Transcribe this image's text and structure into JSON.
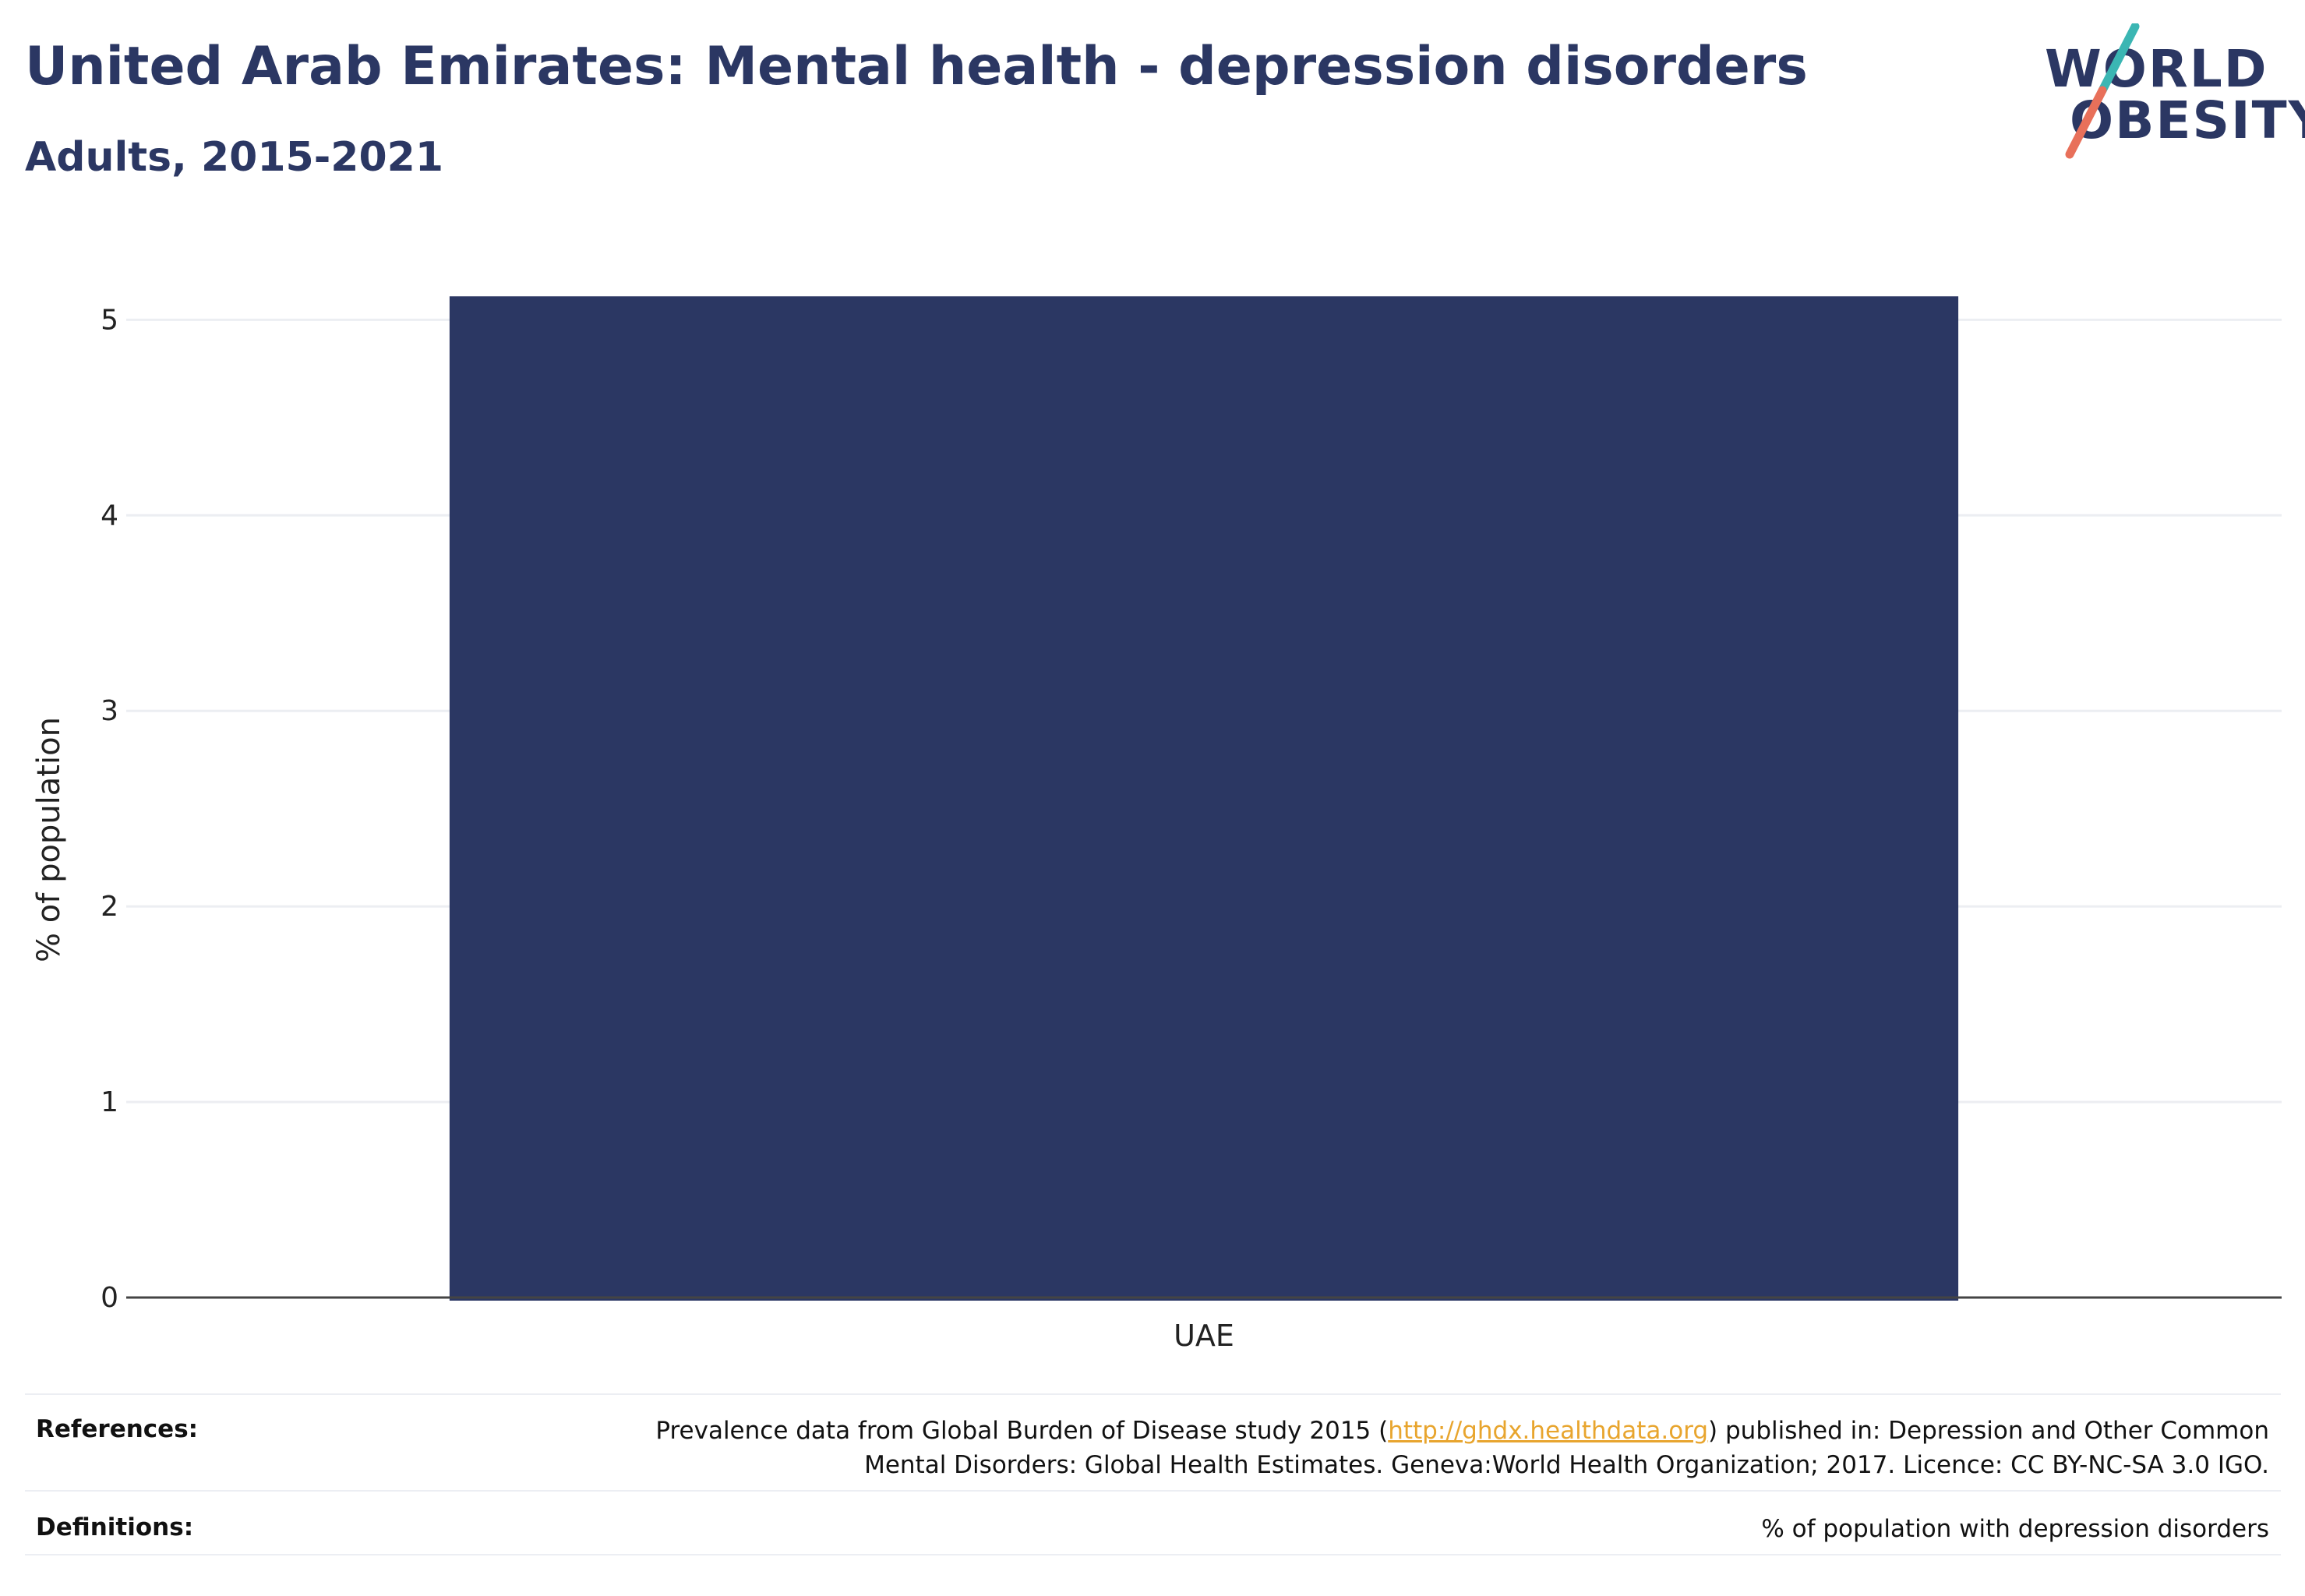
{
  "header": {
    "title": "United Arab Emirates: Mental health - depression disorders",
    "subtitle": "Adults, 2015-2021"
  },
  "logo": {
    "line1": "WORLD",
    "line2": "OBESITY",
    "colors": {
      "text": "#2b3763",
      "slash_top": "#3bb6b3",
      "slash_bottom": "#e8705a"
    }
  },
  "chart_data": {
    "type": "bar",
    "categories": [
      "UAE"
    ],
    "values": [
      5.12
    ],
    "ylabel": "% of population",
    "xlabel": "",
    "ylim": [
      0,
      5.4
    ],
    "yticks": [
      0,
      1,
      2,
      3,
      4,
      5
    ],
    "grid": true,
    "bar_color": "#2b3763"
  },
  "footer": {
    "references_label": "References:",
    "references_line1_before": "Prevalence data from Global Burden of Disease study 2015 (",
    "references_link": "http://ghdx.healthdata.org",
    "references_line1_after": ") published in: Depression and Other Common",
    "references_line2": "Mental Disorders: Global Health Estimates. Geneva:World Health Organization; 2017. Licence: CC BY-NC-SA 3.0 IGO.",
    "definitions_label": "Definitions:",
    "definitions_text": "% of population with depression disorders"
  }
}
